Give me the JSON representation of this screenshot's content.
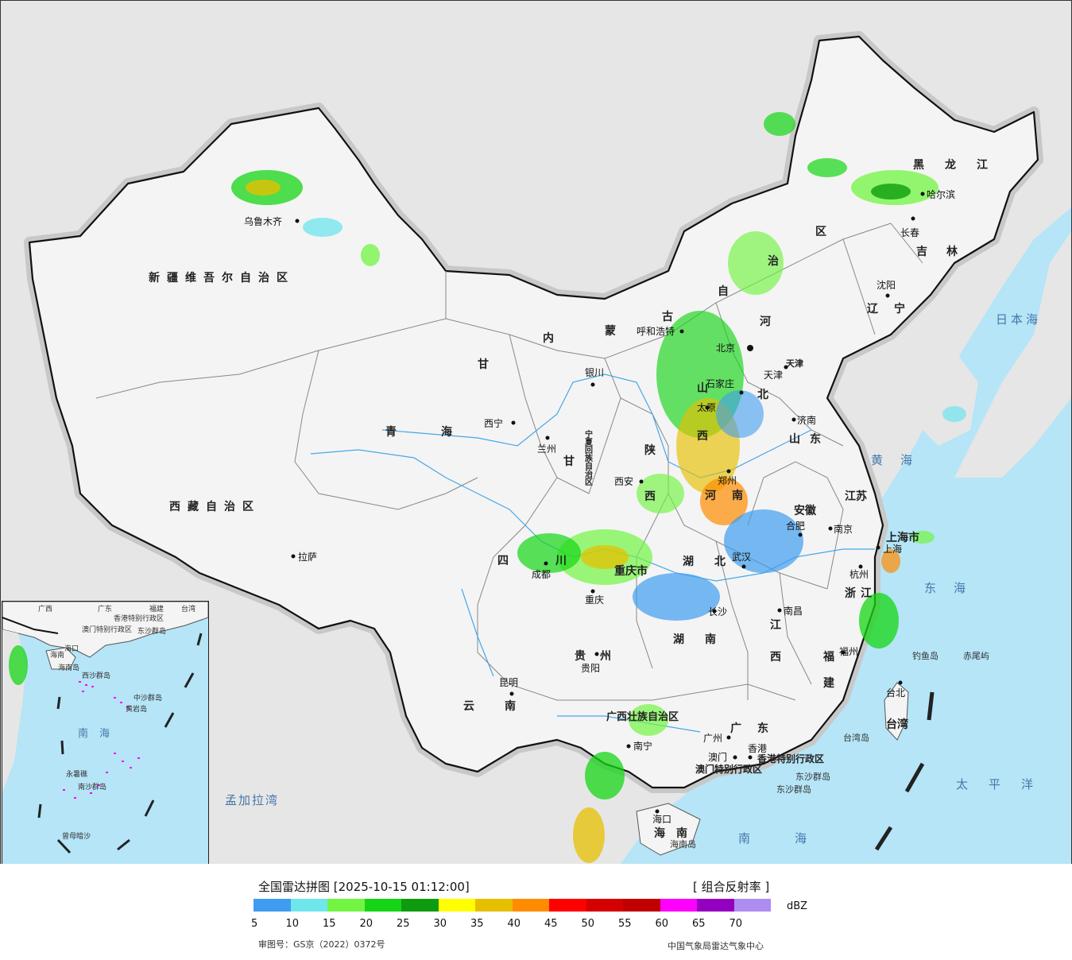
{
  "map": {
    "provinces": [
      "新疆维吾尔自治区",
      "西藏自治区",
      "青海",
      "甘",
      "内",
      "蒙",
      "古",
      "自",
      "治",
      "区",
      "黑龙江",
      "吉林",
      "辽宁",
      "河",
      "北",
      "山",
      "西",
      "陕",
      "西",
      "宁夏回族自治区",
      "四",
      "川",
      "重庆市",
      "湖北",
      "湖南",
      "河南",
      "山东",
      "江苏",
      "安徽",
      "浙江",
      "江",
      "西",
      "福",
      "建",
      "广东",
      "广西壮族自治区",
      "贵州",
      "云南",
      "海南",
      "台湾",
      "上海市",
      "天津"
    ],
    "cities": [
      "乌鲁木齐",
      "哈尔滨",
      "长春",
      "沈阳",
      "呼和浩特",
      "北京",
      "天津",
      "石家庄",
      "太原",
      "济南",
      "银川",
      "西宁",
      "兰州",
      "西安",
      "郑州",
      "合肥",
      "南京",
      "上海",
      "杭州",
      "武汉",
      "成都",
      "重庆",
      "长沙",
      "南昌",
      "福州",
      "台北",
      "贵阳",
      "昆明",
      "南宁",
      "广州",
      "澳门",
      "香港",
      "海口",
      "拉萨"
    ],
    "special_regions": [
      "香港特别行政区",
      "澳门特别行政区"
    ],
    "seas": [
      "日本海",
      "黄海",
      "东海",
      "太平洋",
      "南海",
      "孟加拉湾"
    ],
    "islands": [
      "钓鱼岛",
      "赤尾屿",
      "台湾岛",
      "东沙群岛",
      "海南岛"
    ]
  },
  "inset": {
    "labels": [
      "广西",
      "海南",
      "广东",
      "福建",
      "台湾",
      "香港特别行政区",
      "澳门特别行政区",
      "东沙群岛",
      "海口",
      "海南岛",
      "西沙群岛",
      "中沙群岛",
      "黄岩岛",
      "南海",
      "永暑礁",
      "南沙群岛",
      "曾母暗沙"
    ]
  },
  "legend": {
    "title": "全国雷达拼图 [2025-10-15 01:12:00]",
    "product": "[ 组合反射率 ]",
    "unit": "dBZ",
    "colors": [
      "#3f9cf0",
      "#6ee6ec",
      "#72f542",
      "#16d516",
      "#0e9c0e",
      "#ffff00",
      "#e6c000",
      "#ff8c00",
      "#ff0000",
      "#d50000",
      "#c00000",
      "#ff00ff",
      "#9400c0",
      "#ae8cf0"
    ],
    "ticks": [
      "5",
      "10",
      "15",
      "20",
      "25",
      "30",
      "35",
      "40",
      "45",
      "50",
      "55",
      "60",
      "65",
      "70"
    ],
    "approval": "审图号：GS京（2022）0372号",
    "credit": "中国气象局雷达气象中心"
  }
}
